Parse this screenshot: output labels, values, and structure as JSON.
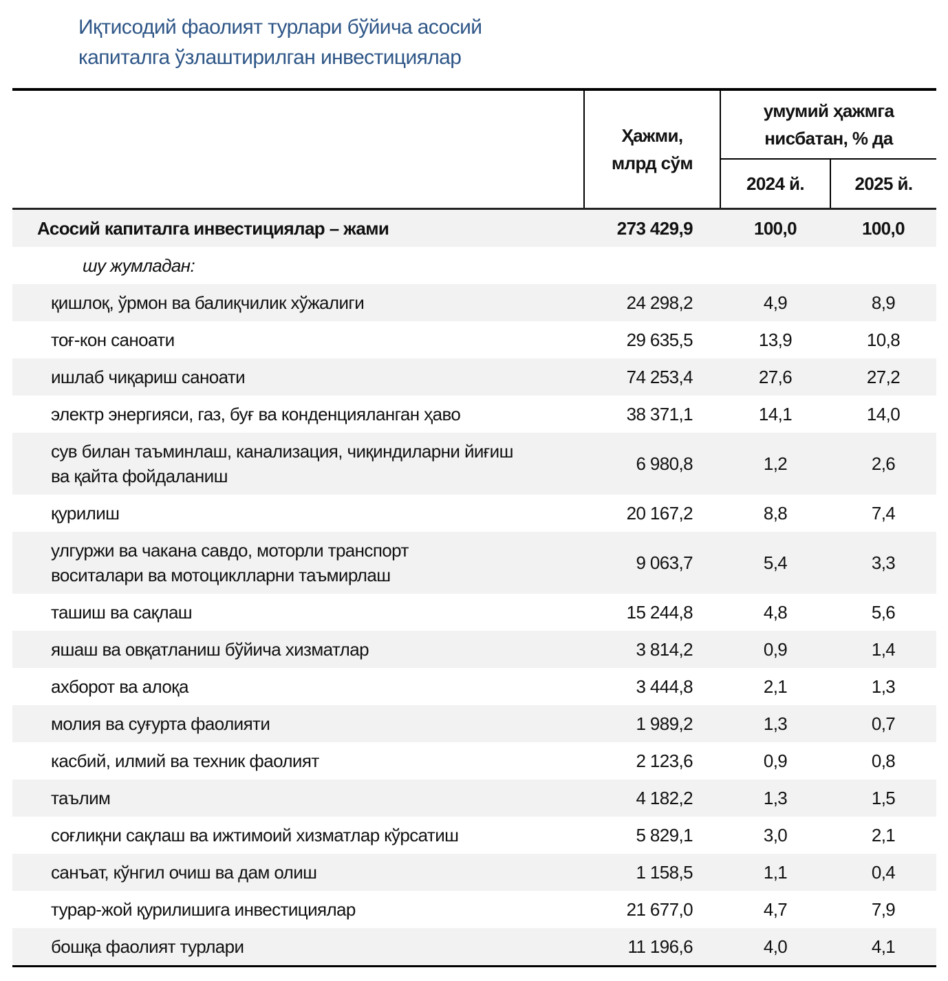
{
  "title_line1": "Иқтисодий фаолият турлари бўйича асосий",
  "title_line2": "капиталга ўзлаштирилган инвестициялар",
  "header": {
    "volume_line1": "Ҳажми,",
    "volume_line2": "млрд сўм",
    "share_line1": "умумий ҳажмга",
    "share_line2": "нисбатан, % да",
    "year1": "2024 й.",
    "year2": "2025 й."
  },
  "total": {
    "label": "Асосий капиталга инвестициялар – жами",
    "volume": "273 429,9",
    "y2024": "100,0",
    "y2025": "100,0"
  },
  "subheading": "шу жумладан:",
  "rows": [
    {
      "l1": "қишлоқ, ўрмон ва балиқчилик хўжалиги",
      "l2": "",
      "volume": "24 298,2",
      "y2024": "4,9",
      "y2025": "8,9"
    },
    {
      "l1": "тоғ-кон саноати",
      "l2": "",
      "volume": "29 635,5",
      "y2024": "13,9",
      "y2025": "10,8"
    },
    {
      "l1": "ишлаб чиқариш саноати",
      "l2": "",
      "volume": "74 253,4",
      "y2024": "27,6",
      "y2025": "27,2"
    },
    {
      "l1": "электр энергияси, газ, буғ ва конденцияланган ҳаво",
      "l2": "",
      "volume": "38 371,1",
      "y2024": "14,1",
      "y2025": "14,0"
    },
    {
      "l1": "сув билан таъминлаш, канализация, чиқиндиларни йиғиш",
      "l2": "ва қайта фойдаланиш",
      "volume": "6 980,8",
      "y2024": "1,2",
      "y2025": "2,6"
    },
    {
      "l1": "қурилиш",
      "l2": "",
      "volume": "20 167,2",
      "y2024": "8,8",
      "y2025": "7,4"
    },
    {
      "l1": "улгуржи ва чакана савдо, моторли транспорт",
      "l2": "воситалари ва мотоциклларни таъмирлаш",
      "volume": "9 063,7",
      "y2024": "5,4",
      "y2025": "3,3"
    },
    {
      "l1": "ташиш ва сақлаш",
      "l2": "",
      "volume": "15 244,8",
      "y2024": "4,8",
      "y2025": "5,6"
    },
    {
      "l1": "яшаш ва овқатланиш бўйича хизматлар",
      "l2": "",
      "volume": "3 814,2",
      "y2024": "0,9",
      "y2025": "1,4"
    },
    {
      "l1": "ахборот ва алоқа",
      "l2": "",
      "volume": "3 444,8",
      "y2024": "2,1",
      "y2025": "1,3"
    },
    {
      "l1": "молия ва суғурта фаолияти",
      "l2": "",
      "volume": "1 989,2",
      "y2024": "1,3",
      "y2025": "0,7"
    },
    {
      "l1": "касбий, илмий ва техник фаолият",
      "l2": "",
      "volume": "2 123,6",
      "y2024": "0,9",
      "y2025": "0,8"
    },
    {
      "l1": "таълим",
      "l2": "",
      "volume": "4 182,2",
      "y2024": "1,3",
      "y2025": "1,5"
    },
    {
      "l1": "соғлиқни сақлаш ва ижтимоий хизматлар кўрсатиш",
      "l2": "",
      "volume": "5 829,1",
      "y2024": "3,0",
      "y2025": "2,1"
    },
    {
      "l1": "санъат, кўнгил очиш ва дам олиш",
      "l2": "",
      "volume": "1 158,5",
      "y2024": "1,1",
      "y2025": "0,4"
    },
    {
      "l1": "турар-жой қурилишига инвестициялар",
      "l2": "",
      "volume": "21 677,0",
      "y2024": "4,7",
      "y2025": "7,9"
    },
    {
      "l1": "бошқа фаолият турлари",
      "l2": "",
      "volume": "11 196,6",
      "y2024": "4,0",
      "y2025": "4,1"
    }
  ]
}
